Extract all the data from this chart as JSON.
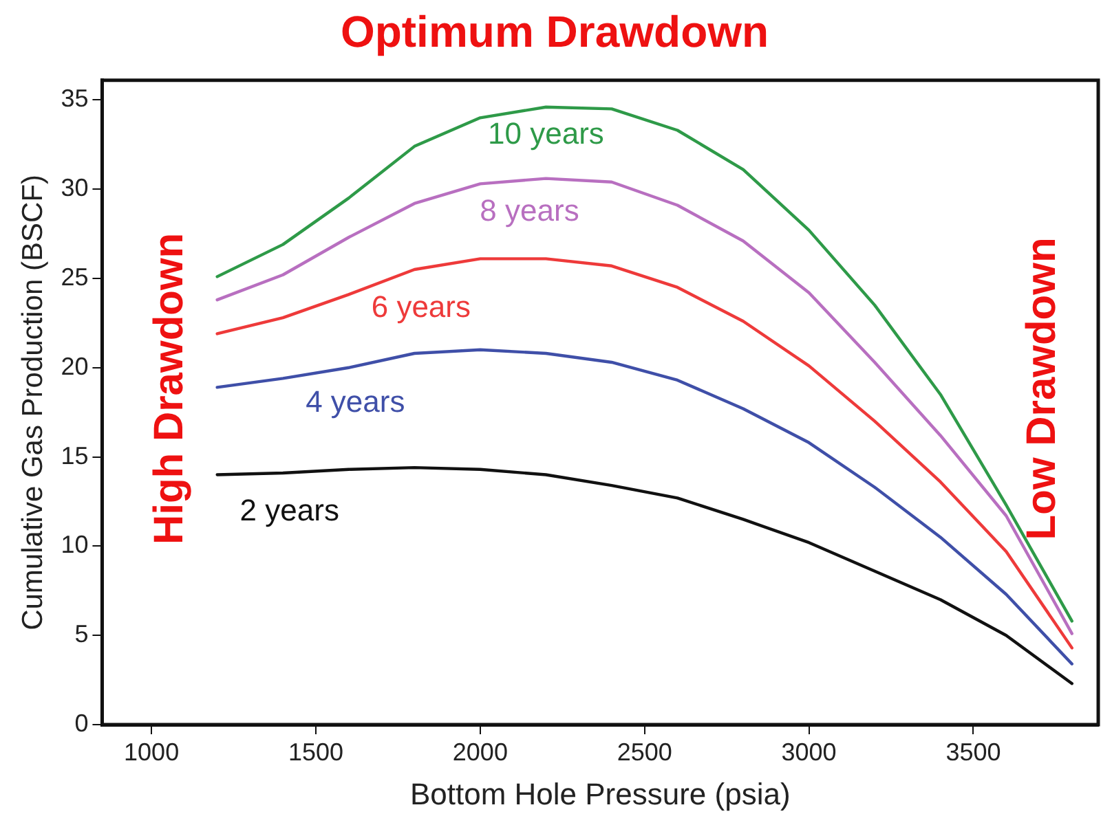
{
  "chart_data": {
    "type": "line",
    "title": "Optimum Drawdown",
    "xlabel": "Bottom Hole Pressure (psia)",
    "ylabel": "Cumulative Gas Production (BSCF)",
    "x": [
      1200,
      1400,
      1600,
      1800,
      2000,
      2200,
      2400,
      2600,
      2800,
      3000,
      3200,
      3400,
      3600,
      3800
    ],
    "series": [
      {
        "name": "10 years",
        "color": "#2e9a48",
        "values": [
          25.1,
          26.9,
          29.5,
          32.4,
          34.0,
          34.6,
          34.5,
          33.3,
          31.1,
          27.7,
          23.5,
          18.5,
          12.3,
          5.8
        ]
      },
      {
        "name": "8 years",
        "color": "#b86fc0",
        "values": [
          23.8,
          25.2,
          27.3,
          29.2,
          30.3,
          30.6,
          30.4,
          29.1,
          27.1,
          24.2,
          20.3,
          16.2,
          11.7,
          5.1
        ]
      },
      {
        "name": "6 years",
        "color": "#ee3a3a",
        "values": [
          21.9,
          22.8,
          24.1,
          25.5,
          26.1,
          26.1,
          25.7,
          24.5,
          22.6,
          20.1,
          17.0,
          13.6,
          9.7,
          4.3
        ]
      },
      {
        "name": "4 years",
        "color": "#3f4fa8",
        "values": [
          18.9,
          19.4,
          20.0,
          20.8,
          21.0,
          20.8,
          20.3,
          19.3,
          17.7,
          15.8,
          13.3,
          10.5,
          7.3,
          3.4
        ]
      },
      {
        "name": "2 years",
        "color": "#111111",
        "values": [
          14.0,
          14.1,
          14.3,
          14.4,
          14.3,
          14.0,
          13.4,
          12.7,
          11.5,
          10.2,
          8.6,
          7.0,
          5.0,
          2.3
        ]
      }
    ],
    "xlim": [
      850,
      3880
    ],
    "xticks": [
      1000,
      1500,
      2000,
      2500,
      3000,
      3500
    ],
    "ylim": [
      0,
      36.1
    ],
    "yticks": [
      0,
      5,
      10,
      15,
      20,
      25,
      30,
      35
    ],
    "grid": false,
    "legend": false,
    "marker": "none",
    "line_style": "solid",
    "annotations": [
      "High Drawdown",
      "Low Drawdown"
    ]
  }
}
